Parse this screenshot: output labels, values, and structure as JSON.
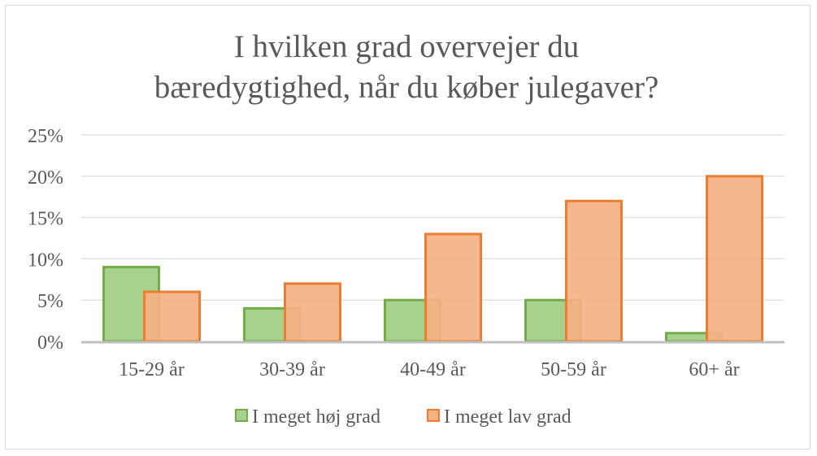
{
  "chart_data": {
    "type": "bar",
    "title_lines": [
      "I hvilken grad overvejer du",
      "bæredygtighed, når du køber julegaver?"
    ],
    "categories": [
      "15-29 år",
      "30-39 år",
      "40-49 år",
      "50-59 år",
      "60+ år"
    ],
    "series": [
      {
        "name": "I meget høj grad",
        "values": [
          9,
          4,
          5,
          5,
          1
        ],
        "fill": "#a9d18e",
        "stroke": "#70ad47"
      },
      {
        "name": "I meget lav grad",
        "values": [
          6,
          7,
          13,
          17,
          20
        ],
        "fill": "#f4b183",
        "stroke": "#ed7d31"
      }
    ],
    "y_ticks": [
      "0%",
      "5%",
      "10%",
      "15%",
      "20%",
      "25%"
    ],
    "ylim": [
      0,
      25
    ],
    "y_unit": "%",
    "grid": true,
    "legend_position": "bottom"
  }
}
